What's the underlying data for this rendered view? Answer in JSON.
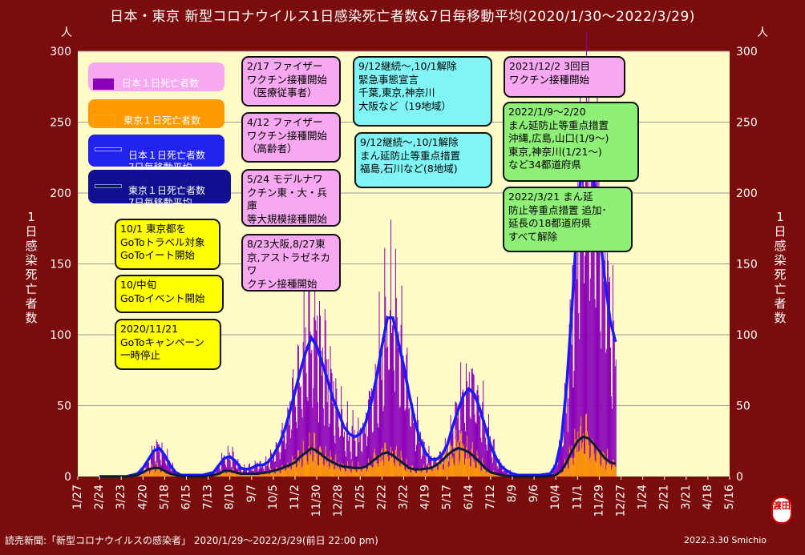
{
  "chart_data": {
    "type": "bar+line",
    "title": "日本・東京 新型コロナウイルス1日感染死亡者数&7日毎移動平均(2020/1/30～2022/3/29)",
    "y_unit_left": "人",
    "y_unit_right": "人",
    "ylabel_left": "1日感染死亡者数",
    "ylabel_right": "1日感染死亡者数",
    "ylim": [
      0,
      300
    ],
    "y_ticks": [
      "0",
      "50",
      "100",
      "150",
      "200",
      "250",
      "300"
    ],
    "x_ticks": [
      "1/27",
      "2/24",
      "3/23",
      "4/20",
      "5/18",
      "6/15",
      "7/13",
      "8/10",
      "9/7",
      "10/5",
      "11/2",
      "11/30",
      "12/28",
      "1/25",
      "2/22",
      "3/22",
      "4/19",
      "5/17",
      "6/14",
      "7/12",
      "8/9",
      "9/6",
      "10/4",
      "11/1",
      "11/29",
      "12/27",
      "1/24",
      "2/21",
      "3/21",
      "4/18",
      "5/16"
    ],
    "grid": "horizontal",
    "series": [
      {
        "name": "日本１日死亡者数",
        "kind": "bar",
        "color": "#8a00b8"
      },
      {
        "name": "東京１日死亡者数",
        "kind": "bar",
        "color": "#ff9900"
      },
      {
        "name": "日本１日死亡者数 7日毎移動平均",
        "kind": "line",
        "color": "#1a1aff"
      },
      {
        "name": "東京１日死亡者数 7日毎移動平均",
        "kind": "line",
        "color": "#0a1a3a"
      }
    ],
    "japan_ma7": [
      [
        0,
        0
      ],
      [
        5,
        0
      ],
      [
        7,
        2
      ],
      [
        8,
        6
      ],
      [
        9,
        12
      ],
      [
        10,
        18
      ],
      [
        11,
        20
      ],
      [
        12,
        15
      ],
      [
        13,
        8
      ],
      [
        14,
        3
      ],
      [
        15,
        1
      ],
      [
        17,
        1
      ],
      [
        19,
        1
      ],
      [
        21,
        3
      ],
      [
        22,
        8
      ],
      [
        23,
        13
      ],
      [
        24,
        14
      ],
      [
        25,
        11
      ],
      [
        26,
        6
      ],
      [
        27,
        5
      ],
      [
        28,
        6
      ],
      [
        29,
        8
      ],
      [
        30,
        8
      ],
      [
        31,
        10
      ],
      [
        32,
        15
      ],
      [
        33,
        22
      ],
      [
        34,
        32
      ],
      [
        35,
        45
      ],
      [
        36,
        60
      ],
      [
        37,
        75
      ],
      [
        38,
        88
      ],
      [
        39,
        98
      ],
      [
        40,
        92
      ],
      [
        41,
        80
      ],
      [
        42,
        68
      ],
      [
        43,
        55
      ],
      [
        44,
        45
      ],
      [
        45,
        35
      ],
      [
        46,
        30
      ],
      [
        47,
        28
      ],
      [
        48,
        30
      ],
      [
        49,
        38
      ],
      [
        50,
        52
      ],
      [
        51,
        70
      ],
      [
        52,
        92
      ],
      [
        53,
        112
      ],
      [
        54,
        112
      ],
      [
        55,
        95
      ],
      [
        56,
        78
      ],
      [
        57,
        58
      ],
      [
        58,
        40
      ],
      [
        59,
        26
      ],
      [
        60,
        17
      ],
      [
        61,
        12
      ],
      [
        62,
        12
      ],
      [
        63,
        15
      ],
      [
        64,
        22
      ],
      [
        65,
        35
      ],
      [
        66,
        47
      ],
      [
        67,
        57
      ],
      [
        68,
        62
      ],
      [
        69,
        58
      ],
      [
        70,
        48
      ],
      [
        71,
        35
      ],
      [
        72,
        22
      ],
      [
        73,
        13
      ],
      [
        74,
        7
      ],
      [
        75,
        4
      ],
      [
        76,
        2
      ],
      [
        77,
        1
      ],
      [
        79,
        1
      ],
      [
        81,
        1
      ],
      [
        83,
        2
      ],
      [
        84,
        8
      ],
      [
        85,
        25
      ],
      [
        86,
        65
      ],
      [
        87,
        120
      ],
      [
        88,
        185
      ],
      [
        89,
        228
      ],
      [
        90,
        235
      ],
      [
        91,
        210
      ],
      [
        92,
        175
      ],
      [
        93,
        140
      ],
      [
        94,
        110
      ],
      [
        95,
        95
      ]
    ],
    "tokyo_ma7": [
      [
        0,
        0
      ],
      [
        5,
        0
      ],
      [
        7,
        1
      ],
      [
        8,
        3
      ],
      [
        9,
        5
      ],
      [
        10,
        6
      ],
      [
        11,
        6
      ],
      [
        12,
        4
      ],
      [
        13,
        2
      ],
      [
        14,
        1
      ],
      [
        16,
        0
      ],
      [
        19,
        0
      ],
      [
        21,
        1
      ],
      [
        22,
        2
      ],
      [
        23,
        4
      ],
      [
        24,
        4
      ],
      [
        25,
        3
      ],
      [
        26,
        2
      ],
      [
        27,
        2
      ],
      [
        29,
        2
      ],
      [
        31,
        3
      ],
      [
        33,
        5
      ],
      [
        35,
        8
      ],
      [
        36,
        10
      ],
      [
        37,
        14
      ],
      [
        38,
        17
      ],
      [
        39,
        20
      ],
      [
        40,
        18
      ],
      [
        41,
        15
      ],
      [
        42,
        12
      ],
      [
        43,
        10
      ],
      [
        44,
        8
      ],
      [
        45,
        7
      ],
      [
        47,
        6
      ],
      [
        48,
        6
      ],
      [
        49,
        7
      ],
      [
        50,
        10
      ],
      [
        51,
        13
      ],
      [
        52,
        16
      ],
      [
        53,
        17
      ],
      [
        54,
        15
      ],
      [
        55,
        12
      ],
      [
        56,
        9
      ],
      [
        57,
        6
      ],
      [
        58,
        5
      ],
      [
        59,
        5
      ],
      [
        61,
        6
      ],
      [
        62,
        8
      ],
      [
        63,
        11
      ],
      [
        64,
        15
      ],
      [
        65,
        18
      ],
      [
        66,
        20
      ],
      [
        67,
        19
      ],
      [
        68,
        17
      ],
      [
        69,
        14
      ],
      [
        70,
        10
      ],
      [
        71,
        6
      ],
      [
        72,
        3
      ],
      [
        73,
        2
      ],
      [
        74,
        1
      ],
      [
        76,
        0
      ],
      [
        79,
        0
      ],
      [
        82,
        0
      ],
      [
        84,
        1
      ],
      [
        85,
        4
      ],
      [
        86,
        10
      ],
      [
        87,
        18
      ],
      [
        88,
        25
      ],
      [
        89,
        28
      ],
      [
        90,
        27
      ],
      [
        91,
        23
      ],
      [
        92,
        18
      ],
      [
        93,
        13
      ],
      [
        94,
        10
      ],
      [
        95,
        9
      ]
    ]
  },
  "legend": {
    "japan_daily": "日本１日死亡者数",
    "tokyo_daily": "東京１日死亡者数",
    "japan_ma": "日本１日死亡者数\n7日毎移動平均",
    "tokyo_ma": "東京１日死亡者数\n7日毎移動平均"
  },
  "annotations": {
    "a1": "10/1 東京都を\nGoToトラベル対象\nGoToイート開始",
    "a2": "10/中旬\nGoToイベント開始",
    "a3": "2020/11/21\nGoToキャンペーン\n一時停止",
    "a4": "2/17 ファイザー\nワクチン接種開始\n（医療従事者）",
    "a5": "4/12 ファイザー\nワクチン接種開始\n（高齢者）",
    "a6": "5/24 モデルナワ\nクチン東・大・兵庫\n等大規模接種開始",
    "a7": "8/23大阪,8/27東\n京,アストラゼネカワ\nクチン接種開始",
    "a8": "9/12継続～,10/1解除\n緊急事態宣言\n千葉,東京,神奈川\n大阪など（19地域）",
    "a9": "9/12継続～,10/1解除\nまん延防止等重点措置\n福島,石川など(8地域)",
    "a10": "2021/12/2 3回目\nワクチン接種開始",
    "a11": "2022/1/9～2/20\nまん延防止等重点措置\n沖縄,広島,山口(1/9～)\n東京,神奈川(1/21～)\nなど34都道府県",
    "a12": "2022/3/21 まん延\n防止等重点措置 追加･\n延長の18都道府県\nすべて解除"
  },
  "footer": {
    "source": "読売新聞:「新型コロナウイルスの感染者」 2020/1/29～2022/3/29(前日 22:00 pm)",
    "credit": "2022.3.30  Smichio",
    "stamp": "渡田"
  },
  "colors": {
    "background": "#7a0c0c",
    "plot": "#fffcc8",
    "japan_bar": "#8a00b8",
    "tokyo_bar": "#ff9900",
    "japan_line": "#1a1aff",
    "tokyo_line": "#0a1a3a"
  }
}
